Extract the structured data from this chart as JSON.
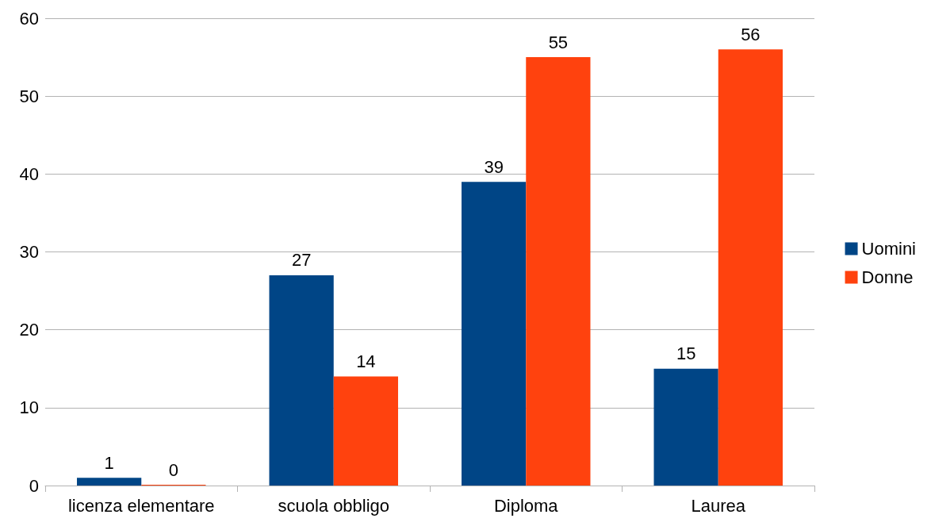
{
  "chart_data": {
    "type": "bar",
    "categories": [
      "licenza elementare",
      "scuola obbligo",
      "Diploma",
      "Laurea"
    ],
    "series": [
      {
        "name": "Uomini",
        "color": "#004586",
        "values": [
          1,
          27,
          39,
          15
        ]
      },
      {
        "name": "Donne",
        "color": "#ff420e",
        "values": [
          0,
          14,
          55,
          56
        ]
      }
    ],
    "ylim": [
      0,
      60
    ],
    "yticks": [
      0,
      10,
      20,
      30,
      40,
      50,
      60
    ],
    "grid": "y",
    "legend": "right",
    "data_labels": true
  }
}
